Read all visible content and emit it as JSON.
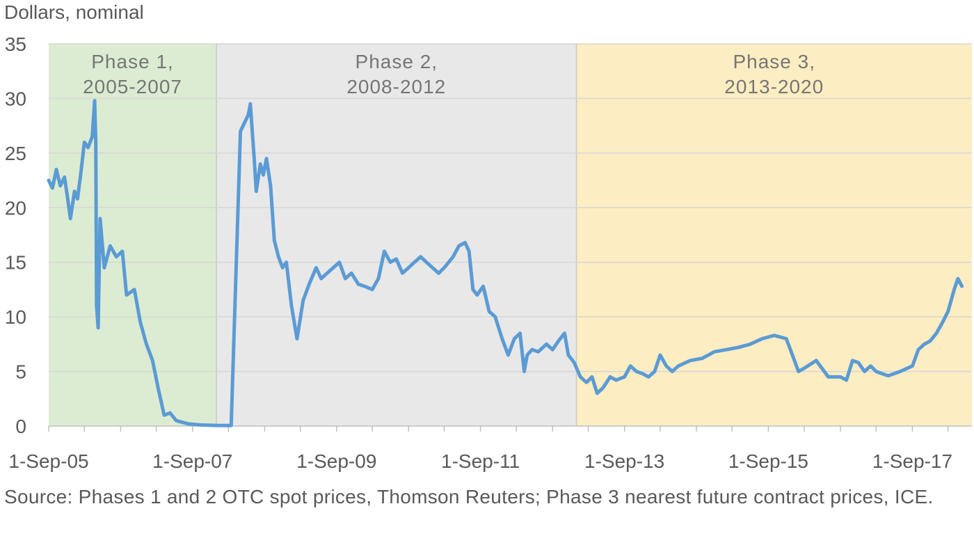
{
  "chart_data": {
    "type": "line",
    "ylabel": "Dollars, nominal",
    "ylim": [
      0,
      35
    ],
    "yticks": [
      0,
      5,
      10,
      15,
      20,
      25,
      30,
      35
    ],
    "xlim": [
      "2005-09-01",
      "2018-06-30"
    ],
    "xticks": [
      "1-Sep-05",
      "1-Sep-07",
      "1-Sep-09",
      "1-Sep-11",
      "1-Sep-13",
      "1-Sep-15",
      "1-Sep-17"
    ],
    "xtick_dates": [
      "2005-09-01",
      "2007-09-01",
      "2009-09-01",
      "2011-09-01",
      "2013-09-01",
      "2015-09-01",
      "2017-09-01"
    ],
    "grid": true,
    "phases": [
      {
        "label_line1": "Phase 1,",
        "label_line2": "2005-2007",
        "start": "2005-09-01",
        "end": "2007-12-31",
        "color": "#dcecd2"
      },
      {
        "label_line1": "Phase 2,",
        "label_line2": "2008-2012",
        "start": "2007-12-31",
        "end": "2012-12-31",
        "color": "#e8e8e8"
      },
      {
        "label_line1": "Phase 3,",
        "label_line2": "2013-2020",
        "start": "2012-12-31",
        "end": "2018-06-30",
        "color": "#fdedc2"
      }
    ],
    "series": [
      {
        "color": "#5b9bd5",
        "points": [
          [
            "2005-09-01",
            22.5
          ],
          [
            "2005-09-20",
            21.8
          ],
          [
            "2005-10-10",
            23.5
          ],
          [
            "2005-10-30",
            22.0
          ],
          [
            "2005-11-20",
            22.8
          ],
          [
            "2005-12-05",
            21.0
          ],
          [
            "2005-12-20",
            19.0
          ],
          [
            "2006-01-10",
            21.5
          ],
          [
            "2006-01-25",
            20.8
          ],
          [
            "2006-02-10",
            23.0
          ],
          [
            "2006-03-01",
            26.0
          ],
          [
            "2006-03-20",
            25.5
          ],
          [
            "2006-04-10",
            26.5
          ],
          [
            "2006-04-22",
            29.8
          ],
          [
            "2006-04-28",
            26.0
          ],
          [
            "2006-05-02",
            11.0
          ],
          [
            "2006-05-10",
            9.0
          ],
          [
            "2006-05-20",
            19.0
          ],
          [
            "2006-06-10",
            14.5
          ],
          [
            "2006-07-10",
            16.5
          ],
          [
            "2006-08-10",
            15.5
          ],
          [
            "2006-09-10",
            16.0
          ],
          [
            "2006-10-01",
            12.0
          ],
          [
            "2006-11-10",
            12.5
          ],
          [
            "2006-12-10",
            9.5
          ],
          [
            "2007-01-10",
            7.5
          ],
          [
            "2007-02-10",
            6.0
          ],
          [
            "2007-03-10",
            3.5
          ],
          [
            "2007-04-10",
            1.0
          ],
          [
            "2007-05-10",
            1.2
          ],
          [
            "2007-06-10",
            0.5
          ],
          [
            "2007-08-10",
            0.2
          ],
          [
            "2007-10-10",
            0.1
          ],
          [
            "2008-01-10",
            0.05
          ],
          [
            "2008-03-15",
            0.05
          ],
          [
            "2008-05-01",
            27.0
          ],
          [
            "2008-06-10",
            28.5
          ],
          [
            "2008-06-20",
            29.5
          ],
          [
            "2008-07-10",
            24.5
          ],
          [
            "2008-07-20",
            21.5
          ],
          [
            "2008-08-10",
            24.0
          ],
          [
            "2008-08-25",
            23.0
          ],
          [
            "2008-09-10",
            24.5
          ],
          [
            "2008-10-01",
            22.0
          ],
          [
            "2008-10-20",
            17.0
          ],
          [
            "2008-11-10",
            15.5
          ],
          [
            "2008-12-01",
            14.5
          ],
          [
            "2008-12-20",
            15.0
          ],
          [
            "2009-01-15",
            11.0
          ],
          [
            "2009-02-12",
            8.0
          ],
          [
            "2009-03-15",
            11.5
          ],
          [
            "2009-04-15",
            13.0
          ],
          [
            "2009-05-20",
            14.5
          ],
          [
            "2009-06-15",
            13.5
          ],
          [
            "2009-07-15",
            14.0
          ],
          [
            "2009-08-15",
            14.5
          ],
          [
            "2009-09-15",
            15.0
          ],
          [
            "2009-10-15",
            13.5
          ],
          [
            "2009-11-15",
            14.0
          ],
          [
            "2009-12-20",
            13.0
          ],
          [
            "2010-01-20",
            12.8
          ],
          [
            "2010-03-01",
            12.5
          ],
          [
            "2010-04-01",
            13.5
          ],
          [
            "2010-05-01",
            16.0
          ],
          [
            "2010-06-01",
            15.0
          ],
          [
            "2010-07-01",
            15.3
          ],
          [
            "2010-08-01",
            14.0
          ],
          [
            "2010-09-01",
            14.5
          ],
          [
            "2010-10-01",
            15.0
          ],
          [
            "2010-11-01",
            15.5
          ],
          [
            "2010-12-01",
            15.0
          ],
          [
            "2011-01-01",
            14.5
          ],
          [
            "2011-02-01",
            14.0
          ],
          [
            "2011-03-01",
            14.5
          ],
          [
            "2011-04-15",
            15.5
          ],
          [
            "2011-05-15",
            16.5
          ],
          [
            "2011-06-15",
            16.8
          ],
          [
            "2011-07-05",
            16.0
          ],
          [
            "2011-07-25",
            12.5
          ],
          [
            "2011-08-15",
            12.0
          ],
          [
            "2011-09-15",
            12.8
          ],
          [
            "2011-10-15",
            10.5
          ],
          [
            "2011-11-15",
            10.0
          ],
          [
            "2011-12-20",
            8.0
          ],
          [
            "2012-01-20",
            6.5
          ],
          [
            "2012-02-20",
            8.0
          ],
          [
            "2012-03-20",
            8.5
          ],
          [
            "2012-04-10",
            5.0
          ],
          [
            "2012-04-25",
            6.5
          ],
          [
            "2012-05-20",
            7.0
          ],
          [
            "2012-06-20",
            6.8
          ],
          [
            "2012-08-01",
            7.5
          ],
          [
            "2012-09-01",
            7.0
          ],
          [
            "2012-10-01",
            7.8
          ],
          [
            "2012-11-01",
            8.5
          ],
          [
            "2012-11-20",
            6.5
          ],
          [
            "2012-12-20",
            5.8
          ],
          [
            "2013-01-20",
            4.5
          ],
          [
            "2013-02-20",
            4.0
          ],
          [
            "2013-03-20",
            4.5
          ],
          [
            "2013-04-15",
            3.0
          ],
          [
            "2013-05-15",
            3.5
          ],
          [
            "2013-06-20",
            4.5
          ],
          [
            "2013-07-20",
            4.2
          ],
          [
            "2013-09-01",
            4.5
          ],
          [
            "2013-10-01",
            5.5
          ],
          [
            "2013-11-01",
            5.0
          ],
          [
            "2013-12-01",
            4.8
          ],
          [
            "2014-01-01",
            4.5
          ],
          [
            "2014-02-01",
            5.0
          ],
          [
            "2014-03-01",
            6.5
          ],
          [
            "2014-04-01",
            5.5
          ],
          [
            "2014-05-01",
            5.0
          ],
          [
            "2014-06-01",
            5.5
          ],
          [
            "2014-08-01",
            6.0
          ],
          [
            "2014-10-01",
            6.2
          ],
          [
            "2014-12-01",
            6.8
          ],
          [
            "2015-02-01",
            7.0
          ],
          [
            "2015-04-01",
            7.2
          ],
          [
            "2015-06-01",
            7.5
          ],
          [
            "2015-08-01",
            8.0
          ],
          [
            "2015-10-01",
            8.3
          ],
          [
            "2015-12-01",
            8.0
          ],
          [
            "2016-01-01",
            6.5
          ],
          [
            "2016-02-01",
            5.0
          ],
          [
            "2016-03-01",
            5.3
          ],
          [
            "2016-05-01",
            6.0
          ],
          [
            "2016-07-01",
            4.5
          ],
          [
            "2016-09-01",
            4.5
          ],
          [
            "2016-10-01",
            4.2
          ],
          [
            "2016-11-01",
            6.0
          ],
          [
            "2016-12-01",
            5.8
          ],
          [
            "2017-01-01",
            5.0
          ],
          [
            "2017-02-01",
            5.5
          ],
          [
            "2017-03-01",
            5.0
          ],
          [
            "2017-05-01",
            4.6
          ],
          [
            "2017-07-01",
            5.0
          ],
          [
            "2017-09-01",
            5.5
          ],
          [
            "2017-10-01",
            7.0
          ],
          [
            "2017-11-01",
            7.5
          ],
          [
            "2017-12-01",
            7.8
          ],
          [
            "2018-01-01",
            8.5
          ],
          [
            "2018-02-01",
            9.5
          ],
          [
            "2018-03-01",
            10.5
          ],
          [
            "2018-04-01",
            12.5
          ],
          [
            "2018-04-20",
            13.5
          ],
          [
            "2018-05-10",
            12.8
          ]
        ]
      }
    ]
  },
  "source_note": "Source: Phases 1 and 2 OTC spot prices, Thomson Reuters; Phase 3 nearest future contract prices, ICE."
}
